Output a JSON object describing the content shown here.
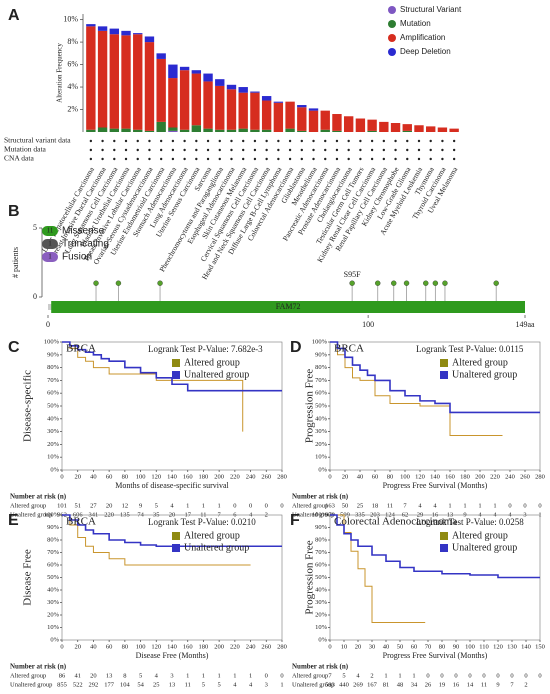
{
  "chart_data": [
    {
      "type": "bar",
      "label": "A",
      "y_label": "Alteration Frequency",
      "categories": [
        "Liver Hepatocellular Carcinoma",
        "Breast Invasive Ductal Carcinoma",
        "Lung Squamous Cell Carcinoma",
        "Bladder Urothelial Carcinoma",
        "Breast Invasive Lobular Carcinoma",
        "Ovarian Serous Cystadenocarcinoma",
        "Uterine Endometrioid Carcinoma",
        "Stomach Adenocarcinoma",
        "Lung Adenocarcinoma",
        "Uterine Serous Carcinoma",
        "Sarcoma",
        "Pheochromocytoma and Paraganglioma",
        "Esophageal Adenocarcinoma",
        "Skin Cutaneous Melanoma",
        "Cervical Squamous Cell Carcinoma",
        "Head and Neck Squamous Cell Carcinoma",
        "Diffuse Large B-Cell Lymphoma",
        "Colorectal Adenocarcinoma",
        "Glioblastoma",
        "Mesothelioma",
        "Pancreatic Adenocarcinoma",
        "Prostate Adenocarcinoma",
        "Cholangiocarcinoma",
        "Testicular Germ Cell Tumors",
        "Kidney Renal Clear Cell Carcinoma",
        "Renal Papillary Cell Carcinoma",
        "Kidney Chromophobe",
        "Low-Grade Glioma",
        "Acute Myeloid Leukemia",
        "Thymoma",
        "Thyroid Carcinoma",
        "Uveal Melanoma"
      ],
      "series": [
        {
          "name": "Structural Variant",
          "color": "#7e57c2",
          "values": [
            0,
            0,
            0,
            0,
            0,
            0,
            0,
            0.1,
            0,
            0,
            0,
            0,
            0,
            0,
            0,
            0,
            0,
            0,
            0,
            0,
            0,
            0,
            0,
            0,
            0,
            0,
            0,
            0,
            0,
            0,
            0,
            0
          ]
        },
        {
          "name": "Mutation",
          "color": "#2e7d32",
          "values": [
            0.2,
            0.4,
            0.3,
            0.3,
            0.2,
            0.1,
            0.9,
            0.3,
            0.2,
            0.6,
            0.3,
            0.2,
            0.2,
            0.3,
            0.2,
            0.2,
            0,
            0.3,
            0.1,
            0,
            0.2,
            0.1,
            0,
            0,
            0.1,
            0,
            0,
            0.1,
            0,
            0,
            0,
            0
          ]
        },
        {
          "name": "Amplification",
          "color": "#d62d1f",
          "values": [
            9.2,
            8.6,
            8.4,
            8.3,
            8.5,
            7.9,
            5.6,
            4.4,
            5.3,
            4.6,
            4.2,
            3.9,
            3.6,
            3.2,
            3.3,
            2.6,
            2.6,
            2.4,
            2.1,
            1.9,
            1.7,
            1.5,
            1.4,
            1.2,
            1.0,
            0.9,
            0.8,
            0.6,
            0.6,
            0.5,
            0.4,
            0.3
          ]
        },
        {
          "name": "Deep Deletion",
          "color": "#2a2ad0",
          "values": [
            0.2,
            0.4,
            0.5,
            0.4,
            0.1,
            0.5,
            0.5,
            1.2,
            0.3,
            0.3,
            0.7,
            0.6,
            0.4,
            0.5,
            0.1,
            0.4,
            0.1,
            0,
            0.2,
            0.2,
            0,
            0,
            0,
            0,
            0,
            0,
            0,
            0,
            0,
            0,
            0,
            0
          ]
        }
      ],
      "ylim": [
        0,
        10.5
      ],
      "yticks": [
        {
          "value": 2,
          "label": "2%"
        },
        {
          "value": 4,
          "label": "4%"
        },
        {
          "value": 6,
          "label": "6%"
        },
        {
          "value": 8,
          "label": "8%"
        },
        {
          "value": 10,
          "label": "10%"
        }
      ],
      "rows": [
        "Structural variant data",
        "Mutation data",
        "CNA data"
      ],
      "legend": "top-right"
    },
    {
      "type": "lollipop",
      "label": "B",
      "y_label": "# patients",
      "x": [
        15,
        22,
        35,
        95,
        103,
        108,
        112,
        118,
        121,
        124,
        140
      ],
      "values": [
        1,
        1,
        1,
        1,
        1,
        1,
        1,
        1,
        1,
        1,
        1
      ],
      "color": "#56a22b",
      "annotation": "S95F",
      "annotation_x": 95,
      "domain": {
        "name": "FAM72",
        "start": 1,
        "end": 149,
        "color": "#2f9a1e"
      },
      "xlim": [
        0,
        149
      ],
      "xticks": [
        0,
        100,
        {
          "value": 149,
          "label": "149aa"
        }
      ],
      "ylim": [
        0,
        5
      ],
      "yticks": [
        0,
        5
      ],
      "legend_items": [
        {
          "count": 11,
          "name": "Missense",
          "color": "#2f9a1e"
        },
        {
          "count": 1,
          "name": "Truncating",
          "color": "#555555"
        },
        {
          "count": 1,
          "name": "Fusion",
          "color": "#8a5fbf"
        }
      ]
    },
    {
      "type": "km",
      "label": "C",
      "title": "BRCA",
      "annotation": "Logrank Test P-Value: 7.682e-3",
      "y_label": "Disease-specific",
      "x_label": "Months of disease-specific survival",
      "series": [
        {
          "name": "Altered group",
          "color": "#c9952d",
          "x": [
            0,
            10,
            20,
            30,
            40,
            60,
            80,
            100,
            120,
            160,
            220,
            230
          ],
          "values": [
            100,
            95,
            88,
            85,
            80,
            75,
            75,
            75,
            70,
            70,
            70,
            30
          ]
        },
        {
          "name": "Unaltered group",
          "color": "#3434c4",
          "x": [
            0,
            10,
            20,
            30,
            40,
            50,
            60,
            80,
            100,
            120,
            140,
            160,
            200,
            240,
            280
          ],
          "values": [
            100,
            97,
            94,
            92,
            90,
            87,
            85,
            80,
            76,
            72,
            67,
            62,
            62,
            62,
            62
          ]
        }
      ],
      "xlim": [
        0,
        280
      ],
      "xticks": [
        0,
        20,
        40,
        60,
        80,
        100,
        120,
        140,
        160,
        180,
        200,
        220,
        240,
        260,
        280
      ],
      "ylim": [
        0,
        100
      ],
      "yticks": [
        {
          "value": 0,
          "label": "0%"
        },
        {
          "value": 10,
          "label": "10%"
        },
        {
          "value": 20,
          "label": "20%"
        },
        {
          "value": 30,
          "label": "30%"
        },
        {
          "value": 40,
          "label": "40%"
        },
        {
          "value": 50,
          "label": "50%"
        },
        {
          "value": 60,
          "label": "60%"
        },
        {
          "value": 70,
          "label": "70%"
        },
        {
          "value": 80,
          "label": "80%"
        },
        {
          "value": 90,
          "label": "90%"
        },
        {
          "value": 100,
          "label": "100%"
        }
      ],
      "risk_table": {
        "title": "Number at risk (n)",
        "rows": [
          {
            "name": "Altered group",
            "values": [
              101,
              51,
              27,
              20,
              12,
              9,
              5,
              4,
              1,
              1,
              1,
              0,
              0,
              0,
              0
            ]
          },
          {
            "name": "Unaltered group",
            "values": [
              962,
              606,
              341,
              220,
              135,
              74,
              35,
              20,
              17,
              11,
              7,
              6,
              4,
              2
            ]
          }
        ]
      }
    },
    {
      "type": "km",
      "label": "D",
      "title": "BRCA",
      "annotation": "Logrank Test P-Value: 0.0115",
      "y_label": "Progression Free",
      "x_label": "Progress Free Survival (Months)",
      "series": [
        {
          "name": "Altered group",
          "color": "#c9952d",
          "x": [
            0,
            10,
            20,
            30,
            40,
            60,
            80,
            120,
            160,
            230
          ],
          "values": [
            100,
            90,
            80,
            72,
            70,
            58,
            52,
            50,
            27,
            27
          ]
        },
        {
          "name": "Unaltered group",
          "color": "#3434c4",
          "x": [
            0,
            10,
            20,
            30,
            40,
            50,
            60,
            80,
            100,
            120,
            140,
            160,
            200,
            240,
            280
          ],
          "values": [
            100,
            95,
            88,
            82,
            78,
            74,
            70,
            62,
            58,
            54,
            52,
            45,
            45,
            45,
            45
          ]
        }
      ],
      "xlim": [
        0,
        280
      ],
      "xticks": [
        0,
        20,
        40,
        60,
        80,
        100,
        120,
        140,
        160,
        180,
        200,
        220,
        240,
        260,
        280
      ],
      "ylim": [
        0,
        100
      ],
      "yticks": [
        {
          "value": 0,
          "label": "0%"
        },
        {
          "value": 10,
          "label": "10%"
        },
        {
          "value": 20,
          "label": "20%"
        },
        {
          "value": 30,
          "label": "30%"
        },
        {
          "value": 40,
          "label": "40%"
        },
        {
          "value": 50,
          "label": "50%"
        },
        {
          "value": 60,
          "label": "60%"
        },
        {
          "value": 70,
          "label": "70%"
        },
        {
          "value": 80,
          "label": "80%"
        },
        {
          "value": 90,
          "label": "90%"
        },
        {
          "value": 100,
          "label": "100%"
        }
      ],
      "risk_table": {
        "title": "Number at risk (n)",
        "rows": [
          {
            "name": "Altered group",
            "values": [
              163,
              50,
              25,
              18,
              11,
              7,
              4,
              4,
              1,
              1,
              1,
              1,
              0,
              0,
              0
            ]
          },
          {
            "name": "Unaltered group",
            "values": [
              979,
              599,
              335,
              203,
              124,
              62,
              29,
              16,
              13,
              9,
              4,
              4,
              4,
              3,
              1
            ]
          }
        ]
      }
    },
    {
      "type": "km",
      "label": "E",
      "title": "BRCA",
      "annotation": "Logrank Test P-Value: 0.0210",
      "y_label": "Disease Free",
      "x_label": "Disease Free (Months)",
      "series": [
        {
          "name": "Altered group",
          "color": "#c9952d",
          "x": [
            0,
            10,
            20,
            30,
            40,
            60,
            80,
            100,
            240
          ],
          "values": [
            100,
            92,
            82,
            75,
            70,
            65,
            60,
            60,
            60
          ]
        },
        {
          "name": "Unaltered group",
          "color": "#3434c4",
          "x": [
            0,
            10,
            20,
            30,
            40,
            60,
            80,
            100,
            120,
            140,
            160,
            200,
            240,
            280
          ],
          "values": [
            100,
            96,
            92,
            88,
            85,
            80,
            78,
            76,
            75,
            75,
            75,
            75,
            75,
            75
          ]
        }
      ],
      "xlim": [
        0,
        280
      ],
      "xticks": [
        0,
        20,
        40,
        60,
        80,
        100,
        120,
        140,
        160,
        180,
        200,
        220,
        240,
        260,
        280
      ],
      "ylim": [
        0,
        100
      ],
      "yticks": [
        {
          "value": 0,
          "label": "0%"
        },
        {
          "value": 10,
          "label": "10%"
        },
        {
          "value": 20,
          "label": "20%"
        },
        {
          "value": 30,
          "label": "30%"
        },
        {
          "value": 40,
          "label": "40%"
        },
        {
          "value": 50,
          "label": "50%"
        },
        {
          "value": 60,
          "label": "60%"
        },
        {
          "value": 70,
          "label": "70%"
        },
        {
          "value": 80,
          "label": "80%"
        },
        {
          "value": 90,
          "label": "90%"
        },
        {
          "value": 100,
          "label": "100%"
        }
      ],
      "risk_table": {
        "title": "Number at risk (n)",
        "rows": [
          {
            "name": "Altered group",
            "values": [
              86,
              41,
              20,
              13,
              8,
              5,
              4,
              3,
              1,
              1,
              1,
              1,
              1,
              0,
              0
            ]
          },
          {
            "name": "Unaltered group",
            "values": [
              855,
              522,
              292,
              177,
              104,
              54,
              25,
              13,
              11,
              5,
              5,
              4,
              4,
              3,
              1
            ]
          }
        ]
      }
    },
    {
      "type": "km",
      "label": "F",
      "title": "Colorectal Adenocarcinoma",
      "annotation": "Logrank Test P-Value: 0.0258",
      "y_label": "Progression Free",
      "x_label": "Progress Free Survival (Months)",
      "series": [
        {
          "name": "Altered group",
          "color": "#c9952d",
          "x": [
            0,
            10,
            15,
            20,
            25,
            30,
            68
          ],
          "values": [
            100,
            86,
            71,
            57,
            43,
            14,
            14
          ]
        },
        {
          "name": "Unaltered group",
          "color": "#3434c4",
          "x": [
            0,
            5,
            10,
            15,
            20,
            30,
            40,
            50,
            60,
            80,
            100,
            120,
            150
          ],
          "values": [
            100,
            92,
            85,
            80,
            75,
            68,
            63,
            58,
            55,
            53,
            52,
            50,
            50
          ]
        }
      ],
      "xlim": [
        0,
        150
      ],
      "xticks": [
        0,
        10,
        20,
        30,
        40,
        50,
        60,
        70,
        80,
        90,
        100,
        110,
        120,
        130,
        140,
        150
      ],
      "ylim": [
        0,
        100
      ],
      "yticks": [
        {
          "value": 0,
          "label": "0%"
        },
        {
          "value": 10,
          "label": "10%"
        },
        {
          "value": 20,
          "label": "20%"
        },
        {
          "value": 30,
          "label": "30%"
        },
        {
          "value": 40,
          "label": "40%"
        },
        {
          "value": 50,
          "label": "50%"
        },
        {
          "value": 60,
          "label": "60%"
        },
        {
          "value": 70,
          "label": "70%"
        },
        {
          "value": 80,
          "label": "80%"
        },
        {
          "value": 90,
          "label": "90%"
        },
        {
          "value": 100,
          "label": "100%"
        }
      ],
      "risk_table": {
        "title": "Number at risk (n)",
        "rows": [
          {
            "name": "Altered group",
            "values": [
              7,
              5,
              4,
              2,
              1,
              1,
              1,
              0,
              0,
              0,
              0,
              0,
              0,
              0,
              0,
              0
            ]
          },
          {
            "name": "Unaltered group",
            "values": [
              583,
              440,
              269,
              167,
              81,
              48,
              34,
              26,
              19,
              16,
              14,
              11,
              9,
              7,
              2
            ]
          }
        ]
      }
    }
  ]
}
